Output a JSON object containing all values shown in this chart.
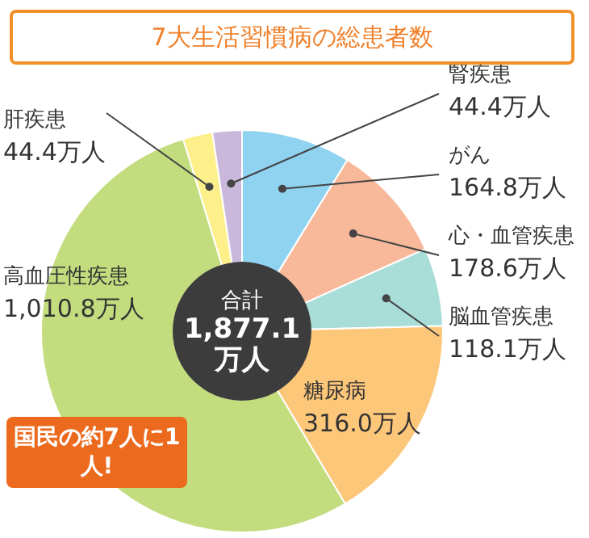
{
  "chart_data": {
    "type": "donut",
    "title": "7大生活習慣病の総患者数",
    "categories": [
      "がん",
      "心・血管疾患",
      "脳血管疾患",
      "糖尿病",
      "高血圧性疾患",
      "肝疾患",
      "腎疾患"
    ],
    "values": [
      164.8,
      178.6,
      118.1,
      316.0,
      1010.8,
      44.4,
      44.4
    ],
    "colors": [
      "#8fd3f0",
      "#f8b99a",
      "#a9ddd8",
      "#fdc77a",
      "#c2dc7e",
      "#fdf08a",
      "#c9b8dc"
    ],
    "value_labels": [
      "164.8万人",
      "178.6万人",
      "118.1万人",
      "316.0万人",
      "1,010.8万人",
      "44.4万人",
      "44.4万人"
    ],
    "annotations": [
      "合計",
      "1,877.1万人",
      "国民の約7人に1人!"
    ],
    "legend": false
  }
}
